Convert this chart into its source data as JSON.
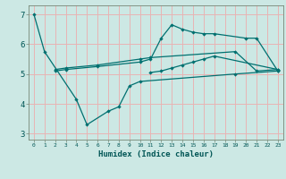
{
  "xlabel": "Humidex (Indice chaleur)",
  "bg_color": "#cce8e4",
  "grid_color": "#e8b4b4",
  "line_color": "#007070",
  "xlim": [
    -0.5,
    23.5
  ],
  "ylim": [
    2.8,
    7.3
  ],
  "yticks": [
    3,
    4,
    5,
    6,
    7
  ],
  "xticks": [
    0,
    1,
    2,
    3,
    4,
    5,
    6,
    7,
    8,
    9,
    10,
    11,
    12,
    13,
    14,
    15,
    16,
    17,
    18,
    19,
    20,
    21,
    22,
    23
  ],
  "segments": [
    {
      "x": [
        0,
        1,
        4,
        5,
        7,
        8,
        9,
        10,
        19,
        23
      ],
      "y": [
        7.0,
        5.75,
        4.15,
        3.3,
        3.75,
        3.9,
        4.6,
        4.75,
        5.0,
        5.1
      ]
    },
    {
      "x": [
        2,
        3,
        6,
        10,
        11,
        12,
        13,
        14,
        15,
        16,
        17,
        20,
        21,
        23
      ],
      "y": [
        5.1,
        5.15,
        5.25,
        5.4,
        5.5,
        6.2,
        6.65,
        6.5,
        6.4,
        6.35,
        6.35,
        6.2,
        6.2,
        5.1
      ]
    },
    {
      "x": [
        2,
        3,
        6,
        10,
        11,
        19,
        21,
        23
      ],
      "y": [
        5.15,
        5.2,
        5.3,
        5.5,
        5.55,
        5.75,
        5.1,
        5.15
      ]
    },
    {
      "x": [
        11,
        12,
        13,
        14,
        15,
        16,
        17,
        23
      ],
      "y": [
        5.05,
        5.1,
        5.2,
        5.3,
        5.4,
        5.5,
        5.6,
        5.15
      ]
    }
  ]
}
